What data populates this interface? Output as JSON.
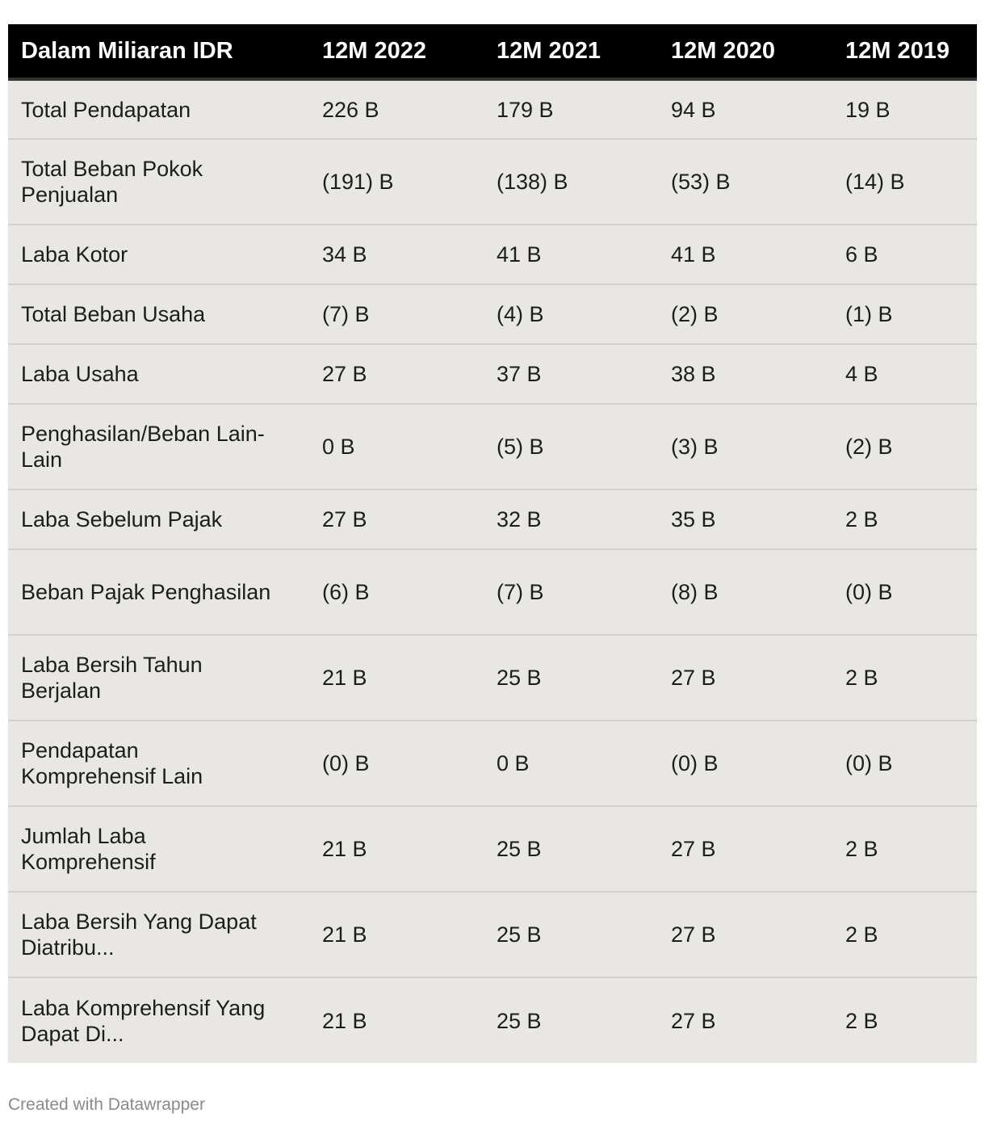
{
  "chart_data": {
    "type": "table",
    "columns": [
      "Dalam Miliaran IDR",
      "12M 2022",
      "12M 2021",
      "12M 2020",
      "12M 2019"
    ],
    "rows": [
      {
        "label": "Total Pendapatan",
        "values": [
          "226 B",
          "179 B",
          "94 B",
          "19 B"
        ]
      },
      {
        "label": "Total Beban Pokok Penjualan",
        "values": [
          "(191) B",
          "(138) B",
          "(53) B",
          "(14) B"
        ]
      },
      {
        "label": "Laba Kotor",
        "values": [
          "34 B",
          "41 B",
          "41 B",
          "6 B"
        ]
      },
      {
        "label": "Total Beban Usaha",
        "values": [
          "(7) B",
          "(4) B",
          "(2) B",
          "(1) B"
        ]
      },
      {
        "label": "Laba Usaha",
        "values": [
          "27 B",
          "37 B",
          "38 B",
          "4 B"
        ]
      },
      {
        "label": "Penghasilan/Beban Lain-Lain",
        "values": [
          "0 B",
          "(5) B",
          "(3) B",
          "(2) B"
        ]
      },
      {
        "label": "Laba Sebelum Pajak",
        "values": [
          "27 B",
          "32 B",
          "35 B",
          "2 B"
        ]
      },
      {
        "label": "Beban Pajak Penghasilan",
        "values": [
          "(6) B",
          "(7) B",
          "(8) B",
          "(0) B"
        ]
      },
      {
        "label": "Laba Bersih Tahun Berjalan",
        "values": [
          "21 B",
          "25 B",
          "27 B",
          "2 B"
        ]
      },
      {
        "label": "Pendapatan Komprehensif Lain",
        "values": [
          "(0) B",
          "0 B",
          "(0) B",
          "(0) B"
        ]
      },
      {
        "label": "Jumlah Laba Komprehensif",
        "values": [
          "21 B",
          "25 B",
          "27 B",
          "2 B"
        ]
      },
      {
        "label": "Laba Bersih Yang Dapat Diatribu...",
        "values": [
          "21 B",
          "25 B",
          "27 B",
          "2 B"
        ]
      },
      {
        "label": "Laba Komprehensif Yang Dapat Di...",
        "values": [
          "21 B",
          "25 B",
          "27 B",
          "2 B"
        ]
      }
    ]
  },
  "footer": {
    "credit": "Created with Datawrapper"
  },
  "colors": {
    "header_bg": "#000000",
    "header_text": "#ffffff",
    "row_bg": "#e8e7e3",
    "row_divider": "#d2d1cd",
    "footer_text": "#8a8a8a"
  }
}
